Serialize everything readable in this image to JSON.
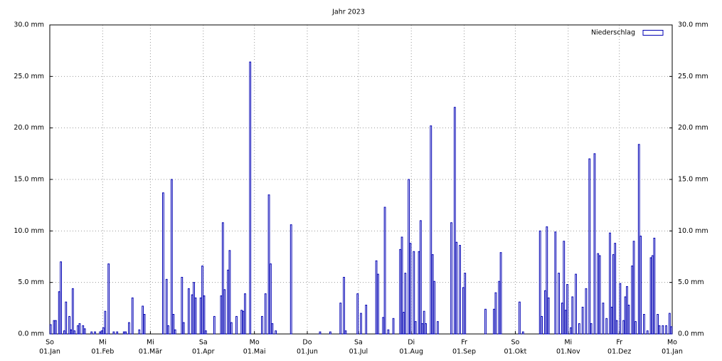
{
  "chart_data": {
    "type": "bar",
    "title": "Jahr 2023",
    "series": [
      {
        "name": "Niederschlag",
        "color": "#0000b4",
        "values": [
          0.9,
          0,
          1.3,
          1.3,
          0,
          4.1,
          7.0,
          0,
          0.3,
          3.1,
          0,
          1.7,
          0.4,
          4.4,
          0.3,
          0,
          0.8,
          1.0,
          0,
          0.8,
          0.5,
          0,
          0,
          0,
          0.2,
          0,
          0.2,
          0,
          0,
          0.2,
          0.3,
          0.6,
          2.2,
          0,
          6.8,
          0,
          0,
          0.2,
          0,
          0.2,
          0,
          0,
          0,
          0.2,
          0.2,
          0,
          1.1,
          0,
          3.5,
          0,
          0,
          0,
          0.4,
          0,
          2.7,
          1.9,
          0,
          0,
          0,
          0,
          0,
          0,
          0,
          0,
          0,
          0,
          13.7,
          0,
          5.3,
          0.8,
          0,
          15.0,
          1.9,
          0.4,
          0,
          0,
          0,
          5.5,
          1.1,
          0,
          0,
          4.4,
          0,
          3.8,
          5.0,
          3.5,
          0,
          0,
          3.5,
          6.6,
          3.7,
          0.3,
          0,
          0,
          0,
          0,
          1.7,
          0,
          0,
          0,
          3.7,
          10.8,
          4.3,
          0,
          6.2,
          8.1,
          1.1,
          0,
          0,
          1.7,
          0,
          0,
          2.3,
          2.2,
          3.9,
          0,
          0,
          26.4,
          0,
          0,
          0,
          0,
          0,
          0,
          1.7,
          0,
          3.9,
          0,
          13.5,
          6.8,
          1.0,
          0,
          0.3,
          0,
          0,
          0,
          0,
          0,
          0,
          0,
          0,
          10.6,
          0,
          0,
          0,
          0,
          0,
          0,
          0,
          0,
          0,
          0,
          0,
          0,
          0,
          0,
          0,
          0,
          0.2,
          0,
          0,
          0,
          0,
          0,
          0.2,
          0,
          0,
          0,
          0,
          0,
          3.0,
          0,
          5.5,
          0.3,
          0,
          0,
          0,
          0,
          0,
          0,
          3.9,
          0,
          2.0,
          0,
          0,
          2.8,
          0,
          0,
          0,
          0,
          0,
          7.1,
          5.8,
          0,
          0,
          1.6,
          12.3,
          0,
          0.4,
          0,
          0,
          1.5,
          0,
          0,
          0,
          8.2,
          9.4,
          2.1,
          5.9,
          0,
          15.0,
          8.8,
          0,
          8.0,
          1.2,
          0,
          8.0,
          11.0,
          1.0,
          2.2,
          1.0,
          0,
          0,
          20.2,
          7.7,
          5.1,
          0,
          1.2,
          0,
          0,
          0,
          0,
          0,
          0,
          0,
          10.8,
          0,
          22.0,
          8.9,
          0,
          8.6,
          0,
          4.5,
          5.9,
          0,
          0,
          0,
          0,
          0,
          0,
          0,
          0,
          0,
          0,
          0,
          2.4,
          0,
          0,
          0,
          0,
          2.4,
          4.0,
          0,
          5.1,
          7.9,
          0,
          0,
          0,
          0,
          0,
          0,
          0,
          0,
          0,
          0,
          3.1,
          0,
          0.2,
          0,
          0,
          0,
          0,
          0,
          0,
          0,
          0,
          0,
          10.0,
          1.7,
          0,
          4.2,
          10.4,
          3.5,
          0,
          0,
          0,
          9.9,
          0,
          5.9,
          0,
          3.0,
          9.0,
          2.3,
          4.8,
          0,
          0.6,
          3.6,
          0,
          5.8,
          0,
          1.0,
          0,
          2.6,
          0,
          4.4,
          0,
          17.0,
          1.0,
          0,
          17.5,
          0,
          7.8,
          7.6,
          0,
          3.0,
          0,
          1.5,
          0,
          9.8,
          2.6,
          7.7,
          8.8,
          1.3,
          0,
          4.9,
          0,
          1.3,
          3.6,
          4.6,
          2.8,
          0,
          6.6,
          9.0,
          1.2,
          0,
          18.4,
          9.5,
          0,
          1.9,
          0,
          0.3,
          0,
          7.4,
          7.6,
          9.3,
          0,
          1.9,
          0.8,
          0,
          0.8,
          0,
          0.8,
          0,
          2.0,
          0.7
        ]
      }
    ],
    "xlim": [
      0,
      365
    ],
    "xticks": [
      {
        "value": 0,
        "label": "01.Jan",
        "weekday": "So"
      },
      {
        "value": 31,
        "label": "01.Feb",
        "weekday": "Mi"
      },
      {
        "value": 59,
        "label": "01.Mär",
        "weekday": "Mi"
      },
      {
        "value": 90,
        "label": "01.Apr",
        "weekday": "Sa"
      },
      {
        "value": 120,
        "label": "01.Mai",
        "weekday": "Mo"
      },
      {
        "value": 151,
        "label": "01.Jun",
        "weekday": "Do"
      },
      {
        "value": 181,
        "label": "01.Jul",
        "weekday": "Sa"
      },
      {
        "value": 212,
        "label": "01.Aug",
        "weekday": "Di"
      },
      {
        "value": 243,
        "label": "01.Sep",
        "weekday": "Fr"
      },
      {
        "value": 273,
        "label": "01.Okt",
        "weekday": "So"
      },
      {
        "value": 304,
        "label": "01.Nov",
        "weekday": "Mi"
      },
      {
        "value": 334,
        "label": "01.Dez",
        "weekday": "Fr"
      },
      {
        "value": 365,
        "label": "01.Jan",
        "weekday": "Mo"
      }
    ],
    "ylim": [
      0,
      30
    ],
    "yticks": [
      {
        "value": 0,
        "label": "0.0 mm"
      },
      {
        "value": 5,
        "label": "5.0 mm"
      },
      {
        "value": 10,
        "label": "10.0 mm"
      },
      {
        "value": 15,
        "label": "15.0 mm"
      },
      {
        "value": 20,
        "label": "20.0 mm"
      },
      {
        "value": 25,
        "label": "25.0 mm"
      },
      {
        "value": 30,
        "label": "30.0 mm"
      }
    ],
    "grid": true,
    "legend": "top-right"
  }
}
